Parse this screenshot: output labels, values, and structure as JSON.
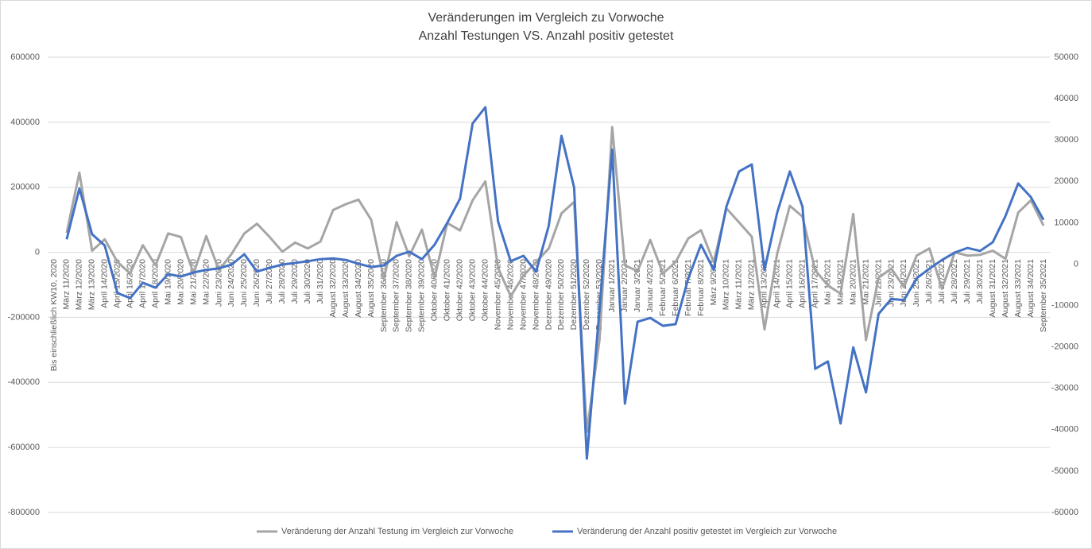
{
  "chart_data": {
    "type": "line",
    "title": "Veränderungen im Vergleich zu Vorwoche",
    "subtitle": "Anzahl Testungen VS. Anzahl positiv getestet",
    "categories": [
      "Bis einschließlich KW10, 2020",
      "März 11/2020",
      "März 12/2020",
      "März 13/2020",
      "April 14/2020",
      "April 15/2020",
      "April 16/2020",
      "April 17/2020",
      "April 18/2020",
      "Mai 19/2020",
      "Mai 20/2020",
      "Mai 21/2020",
      "Mai 22/2020",
      "Juni 23/2020",
      "Juni 24/2020",
      "Juni 25/2020",
      "Juni 26/2020",
      "Juli 27/2020",
      "Juli 28/2020",
      "Juli 29/2020",
      "Juli 30/2020",
      "Juli 31/2020",
      "August 32/2020",
      "August 33/2020",
      "August 34/2020",
      "August 35/2020",
      "September 36/2020",
      "September 37/2020",
      "September 38/2020",
      "September 39/2020",
      "Oktober 40/2020",
      "Oktober 41/2020",
      "Oktober 42/2020",
      "Oktober 43/2020",
      "Oktober 44/2020",
      "November 45/2020",
      "November 46/2020",
      "November 47/2020",
      "November 48/2020",
      "Dezember 49/2020",
      "Dezember 50/2020",
      "Dezember 51/2020",
      "Dezember 52/2020",
      "Dezember 53/2020",
      "Januar 1/2021",
      "Januar 2/2021",
      "Januar 3/2021",
      "Januar 4/2021",
      "Februar 5/2021",
      "Februar 6/2021",
      "Februar 7/2021",
      "Februar 8/2021",
      "März 9/2021",
      "März 10/2021",
      "März 11/2021",
      "März 12/2021",
      "April 13/2021",
      "April 14/2021",
      "April 15/2021",
      "April 16/2021",
      "April 17/2021",
      "Mai 18/2021",
      "Mai 19/2021",
      "Mai 20/2021",
      "Mai 21/2021",
      "Juni 22/2021",
      "Juni 23/2021",
      "Juni 24/2021",
      "Juni 25/2021",
      "Juli 26/2021",
      "Juli 27/2021",
      "Juli 28/2021",
      "Juli 29/2021",
      "Juli 30/2021",
      "August 31/2021",
      "August 32/2021",
      "August 33/2021",
      "August 34/2021",
      "September 35/2021"
    ],
    "series": [
      {
        "name": "Veränderung der Anzahl Testung im Vergleich zur Vorwoche",
        "color": "#a5a5a5",
        "axis": "y",
        "values": [
          null,
          60000,
          245000,
          5000,
          40000,
          -30000,
          -65000,
          22000,
          -40000,
          58000,
          47000,
          -65000,
          50000,
          -55000,
          -5000,
          58000,
          88000,
          47000,
          2000,
          30000,
          12000,
          33000,
          130000,
          148000,
          162000,
          100000,
          -82000,
          93000,
          -12000,
          70000,
          -78000,
          90000,
          67000,
          160000,
          218000,
          -48000,
          -135000,
          -72000,
          -30000,
          12000,
          120000,
          155000,
          -552000,
          -270000,
          385000,
          -40000,
          -58000,
          38000,
          -65000,
          -30000,
          43000,
          68000,
          -30000,
          135000,
          92000,
          48000,
          -237000,
          -5000,
          143000,
          110000,
          -55000,
          -102000,
          -127000,
          118000,
          -270000,
          -78000,
          -50000,
          -107000,
          -10000,
          12000,
          -112000,
          0,
          -10000,
          -8000,
          5000,
          -20000,
          122000,
          160000,
          82000
        ]
      },
      {
        "name": "Veränderung der Anzahl positiv getestet im Vergleich zur Vorwoche",
        "color": "#4472c4",
        "axis": "y2",
        "values": [
          null,
          6000,
          18300,
          7200,
          4500,
          -7000,
          -8200,
          -4500,
          -5700,
          -2400,
          -3000,
          -2000,
          -1400,
          -1000,
          -100,
          2400,
          -1800,
          -900,
          -100,
          300,
          700,
          1200,
          1400,
          1000,
          100,
          -700,
          -300,
          2000,
          3000,
          1200,
          4700,
          10000,
          15800,
          34000,
          37900,
          10300,
          700,
          2000,
          -1800,
          9300,
          31000,
          18500,
          -47000,
          -11000,
          27700,
          -33700,
          -13900,
          -13000,
          -14900,
          -14500,
          -3400,
          4700,
          -1400,
          13900,
          22400,
          24100,
          -1400,
          12400,
          22400,
          13900,
          -25300,
          -23500,
          -38500,
          -20100,
          -31000,
          -12000,
          -8400,
          -8700,
          -3400,
          -1100,
          1000,
          2800,
          3900,
          3200,
          5300,
          11600,
          19500,
          16200,
          10700
        ]
      }
    ],
    "ylim": [
      -800000,
      600000
    ],
    "yticks": [
      -800000,
      -600000,
      -400000,
      -200000,
      0,
      200000,
      400000,
      600000
    ],
    "y2lim": [
      -60000,
      50000
    ],
    "y2ticks": [
      -60000,
      -50000,
      -40000,
      -30000,
      -20000,
      -10000,
      0,
      10000,
      20000,
      30000,
      40000,
      50000
    ],
    "grid": true,
    "legend": "bottom"
  }
}
